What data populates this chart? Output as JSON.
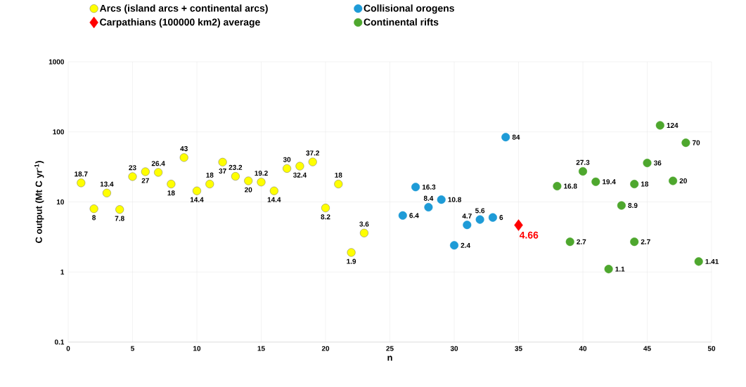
{
  "chart_data": {
    "type": "scatter",
    "xlabel": "n",
    "ylabel": "C output (Mt C yr$^{-1}$)",
    "xlim": [
      0,
      50
    ],
    "xticks": [
      0,
      5,
      10,
      15,
      20,
      25,
      30,
      35,
      40,
      45,
      50
    ],
    "ylim": [
      0.1,
      1000
    ],
    "yticks": [
      0.1,
      1,
      10,
      100,
      1000
    ],
    "log": true,
    "grid": true,
    "legend": "top",
    "data_labels": true,
    "series": [
      {
        "name": "Arcs (island arcs + continental arcs)",
        "color": "#ffff00",
        "marker": "circle",
        "x": [
          1,
          2,
          3,
          4,
          5,
          6,
          7,
          8,
          9,
          10,
          11,
          12,
          13,
          14,
          15,
          16,
          17,
          18,
          19,
          20,
          21,
          22,
          23
        ],
        "values": [
          18.7,
          8,
          13.4,
          7.8,
          23,
          27,
          26.4,
          18,
          43,
          14.4,
          18,
          37,
          23.2,
          20,
          19.2,
          14.4,
          30,
          32.4,
          37.2,
          8.2,
          18,
          1.9,
          3.6
        ]
      },
      {
        "name": "Collisional orogens",
        "color": "#1e9bd7",
        "marker": "circle",
        "x": [
          26,
          27,
          28,
          29,
          30,
          31,
          32,
          33,
          34
        ],
        "values": [
          6.4,
          16.3,
          8.4,
          10.8,
          2.4,
          4.7,
          5.6,
          6,
          84
        ]
      },
      {
        "name": "Carpathians (100000 km2) average",
        "color": "#ff0000",
        "marker": "diamond",
        "x": [
          35
        ],
        "values": [
          4.66
        ]
      },
      {
        "name": "Continental rifts",
        "color": "#4ea72e",
        "marker": "circle",
        "x": [
          38,
          39,
          40,
          41,
          42,
          43,
          44,
          44,
          45,
          46,
          47,
          48,
          49
        ],
        "values": [
          16.8,
          2.7,
          27.3,
          19.4,
          1.1,
          8.9,
          18,
          2.7,
          36,
          124,
          20,
          70,
          1.41
        ]
      }
    ]
  }
}
